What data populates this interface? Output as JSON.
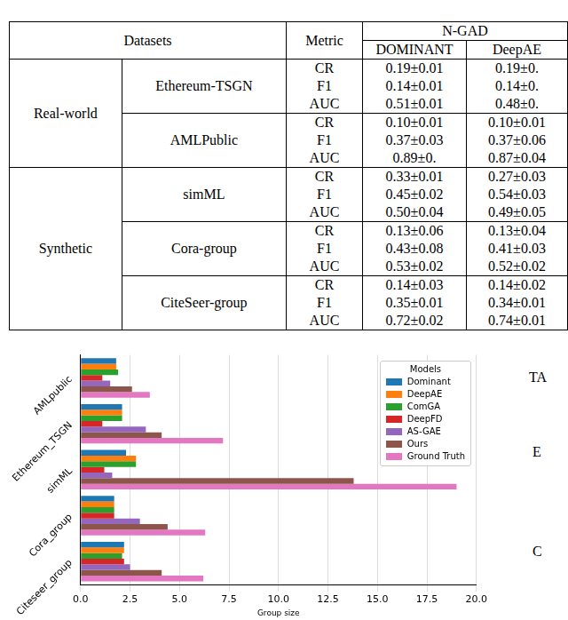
{
  "table": {
    "header": {
      "top": [
        "Datasets",
        "Metric",
        "N-GAD"
      ],
      "models": [
        "DOMINANT",
        "DeepAE"
      ]
    },
    "groups": [
      {
        "name": "Real-world",
        "datasets": [
          {
            "name": "Ethereum-TSGN",
            "rows": [
              [
                "CR",
                "0.19±0.01",
                "0.19±0."
              ],
              [
                "F1",
                "0.14±0.01",
                "0.14±0."
              ],
              [
                "AUC",
                "0.51±0.01",
                "0.48±0."
              ]
            ]
          },
          {
            "name": "AMLPublic",
            "rows": [
              [
                "CR",
                "0.10±0.01",
                "0.10±0.01"
              ],
              [
                "F1",
                "0.37±0.03",
                "0.37±0.06"
              ],
              [
                "AUC",
                "0.89±0.",
                "0.87±0.04"
              ]
            ]
          }
        ]
      },
      {
        "name": "Synthetic",
        "datasets": [
          {
            "name": "simML",
            "rows": [
              [
                "CR",
                "0.33±0.01",
                "0.27±0.03"
              ],
              [
                "F1",
                "0.45±0.02",
                "0.54±0.03"
              ],
              [
                "AUC",
                "0.50±0.04",
                "0.49±0.05"
              ]
            ]
          },
          {
            "name": "Cora-group",
            "rows": [
              [
                "CR",
                "0.13±0.06",
                "0.13±0.04"
              ],
              [
                "F1",
                "0.43±0.08",
                "0.41±0.03"
              ],
              [
                "AUC",
                "0.53±0.02",
                "0.52±0.02"
              ]
            ]
          },
          {
            "name": "CiteSeer-group",
            "rows": [
              [
                "CR",
                "0.14±0.03",
                "0.14±0.02"
              ],
              [
                "F1",
                "0.35±0.01",
                "0.34±0.01"
              ],
              [
                "AUC",
                "0.72±0.02",
                "0.74±0.01"
              ]
            ]
          }
        ]
      }
    ]
  },
  "right_fragments": [
    "TA",
    "E",
    "C"
  ],
  "chart_data": {
    "type": "bar",
    "orientation": "horizontal",
    "categories": [
      "AMLpublic",
      "Ethereum_TSGN",
      "simML",
      "Cora_group",
      "Citeseer_group"
    ],
    "series": [
      {
        "name": "Dominant",
        "color": "#1f77b4",
        "values": [
          1.8,
          2.1,
          2.3,
          1.7,
          2.2
        ]
      },
      {
        "name": "DeepAE",
        "color": "#ff7f0e",
        "values": [
          1.8,
          2.1,
          2.8,
          1.7,
          2.2
        ]
      },
      {
        "name": "ComGA",
        "color": "#2ca02c",
        "values": [
          1.9,
          2.1,
          2.8,
          1.7,
          2.1
        ]
      },
      {
        "name": "DeepFD",
        "color": "#d62728",
        "values": [
          1.1,
          1.1,
          1.2,
          1.7,
          2.2
        ]
      },
      {
        "name": "AS-GAE",
        "color": "#9467bd",
        "values": [
          1.5,
          3.3,
          1.6,
          3.0,
          2.5
        ]
      },
      {
        "name": "Ours",
        "color": "#8c564b",
        "values": [
          2.6,
          4.1,
          13.8,
          4.4,
          4.1
        ]
      },
      {
        "name": "Ground Truth",
        "color": "#e377c2",
        "values": [
          3.5,
          7.2,
          19.0,
          6.3,
          6.2
        ]
      }
    ],
    "x_label": "Group size",
    "xlim": [
      0,
      20
    ],
    "xticks": [
      {
        "value": 0,
        "label": "0.0"
      },
      {
        "value": 2.5,
        "label": "2.5"
      },
      {
        "value": 5,
        "label": "5.0"
      },
      {
        "value": 7.5,
        "label": "7.5"
      },
      {
        "value": 10,
        "label": "10.0"
      },
      {
        "value": 12.5,
        "label": "12.5"
      },
      {
        "value": 15,
        "label": "15.0"
      },
      {
        "value": 17.5,
        "label": "17.5"
      },
      {
        "value": 20,
        "label": "20.0"
      }
    ],
    "grid": true,
    "legend": "upper right",
    "legend_title": "Models"
  }
}
